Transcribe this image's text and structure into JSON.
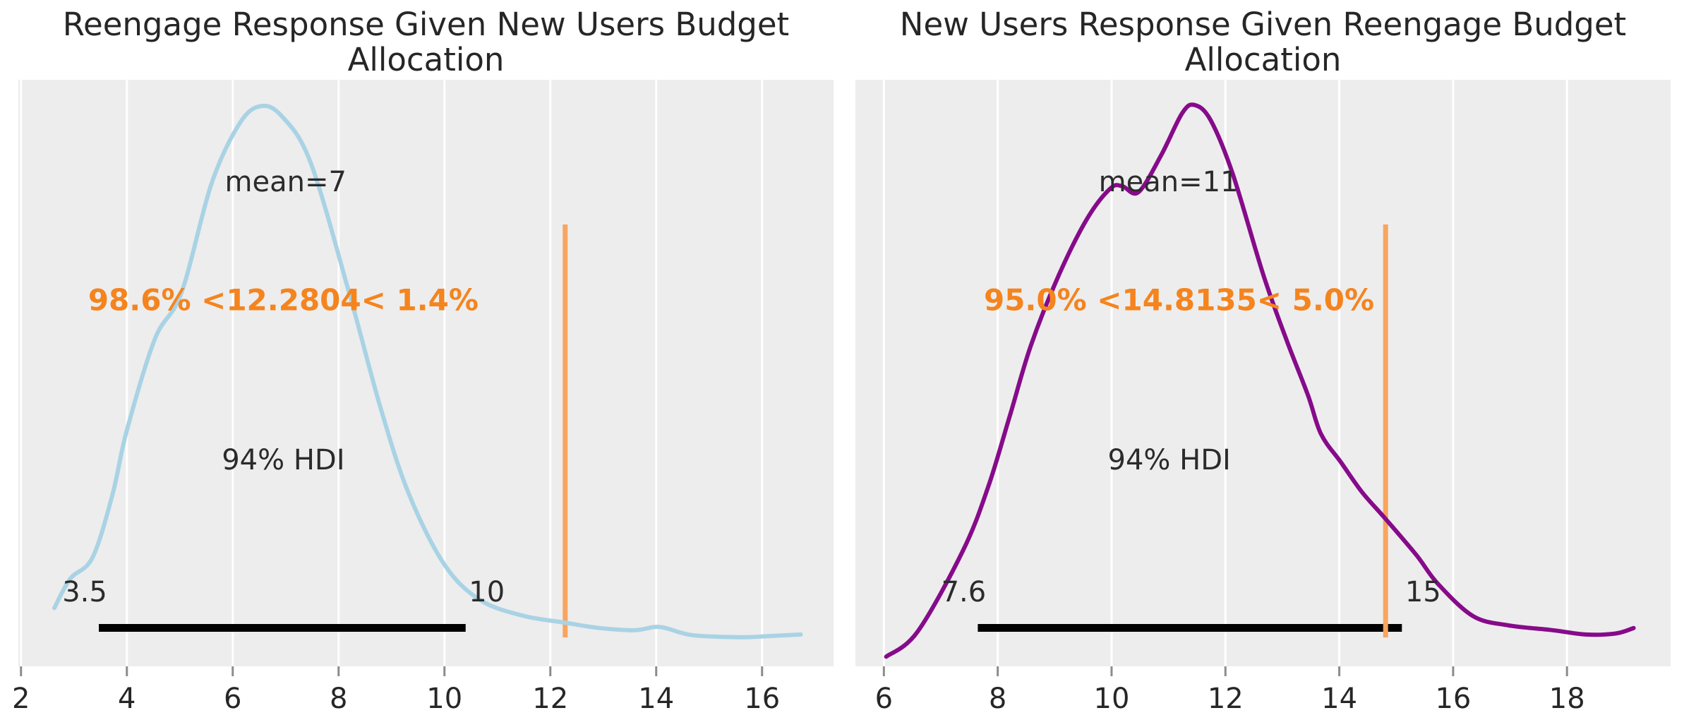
{
  "figure": {
    "kind": "arviz-posterior-plot",
    "background": "#ffffff"
  },
  "colors": {
    "panel_bg": "#ededed",
    "gridline": "#ffffff",
    "tick_mark": "#8c8c8c",
    "text": "#2b2b2b",
    "title_text": "#262626",
    "ref_text_color": "#f5841e",
    "ref_line_color": "#f8a55f",
    "hdi_bar_color": "#000000",
    "left_curve_color": "#a9d3e4",
    "right_curve_color": "#860b8a"
  },
  "chart_data": [
    {
      "type": "line",
      "subtype": "kde-posterior-density",
      "title": "Reengage Response Given New Users Budget\nAllocation",
      "title_full": "Reengage Response Given New Users Budget Allocation",
      "mean": 7,
      "mean_label": "mean=7",
      "hdi_label": "94% HDI",
      "hdi_lower": 3.5,
      "hdi_upper": 10,
      "hdi_lower_label": "3.5",
      "hdi_upper_label": "10",
      "hdi_bar": [
        3.47,
        10.4
      ],
      "ref_value": 12.2804,
      "ref_text": "98.6% <12.2804< 1.4%",
      "pct_below_ref": "98.6%",
      "pct_above_ref": "1.4%",
      "curve_color": "#a9d3e4",
      "x_ticks": [
        2,
        4,
        6,
        8,
        10,
        12,
        14,
        16
      ],
      "x_range": [
        1.95,
        17.35
      ],
      "grid": "vertical-white",
      "legend": "none",
      "kde_x": [
        2.63,
        2.93,
        3.35,
        3.73,
        4.0,
        4.53,
        5.03,
        5.6,
        6.13,
        6.53,
        6.93,
        7.47,
        8.2,
        8.8,
        9.33,
        10.0,
        10.67,
        11.47,
        12.27,
        12.93,
        13.6,
        14.07,
        14.67,
        15.6,
        16.1,
        16.73
      ],
      "kde_density": [
        0.07,
        0.124,
        0.163,
        0.28,
        0.398,
        0.567,
        0.652,
        0.854,
        0.965,
        0.997,
        0.978,
        0.893,
        0.652,
        0.437,
        0.28,
        0.15,
        0.085,
        0.056,
        0.043,
        0.033,
        0.029,
        0.035,
        0.02,
        0.016,
        0.018,
        0.021
      ]
    },
    {
      "type": "line",
      "subtype": "kde-posterior-density",
      "title": "New Users Response Given Reengage Budget\nAllocation",
      "title_full": "New Users Response Given Reengage Budget Allocation",
      "mean": 11,
      "mean_label": "mean=11",
      "hdi_label": "94% HDI",
      "hdi_lower": 7.6,
      "hdi_upper": 15,
      "hdi_lower_label": "7.6",
      "hdi_upper_label": "15",
      "hdi_bar": [
        7.65,
        15.1
      ],
      "ref_value": 14.8135,
      "ref_text": "95.0% <14.8135< 5.0%",
      "pct_below_ref": "95.0%",
      "pct_above_ref": "5.0%",
      "curve_color": "#860b8a",
      "x_ticks": [
        6,
        8,
        10,
        12,
        14,
        16,
        18
      ],
      "x_range": [
        5.5,
        19.82
      ],
      "grid": "vertical-white",
      "legend": "none",
      "kde_x": [
        6.04,
        6.59,
        7.39,
        7.83,
        8.21,
        8.58,
        9.07,
        9.57,
        9.98,
        10.19,
        10.47,
        10.87,
        11.24,
        11.46,
        11.74,
        12.13,
        12.67,
        13.08,
        13.45,
        13.68,
        14.03,
        14.4,
        14.81,
        15.36,
        15.73,
        16.35,
        16.97,
        17.75,
        18.33,
        18.86,
        19.17
      ],
      "kde_density": [
        -0.02,
        0.026,
        0.176,
        0.293,
        0.424,
        0.554,
        0.684,
        0.789,
        0.845,
        0.849,
        0.838,
        0.906,
        0.984,
        0.999,
        0.971,
        0.871,
        0.684,
        0.563,
        0.463,
        0.391,
        0.339,
        0.284,
        0.235,
        0.167,
        0.115,
        0.055,
        0.038,
        0.029,
        0.021,
        0.023,
        0.033
      ]
    }
  ]
}
